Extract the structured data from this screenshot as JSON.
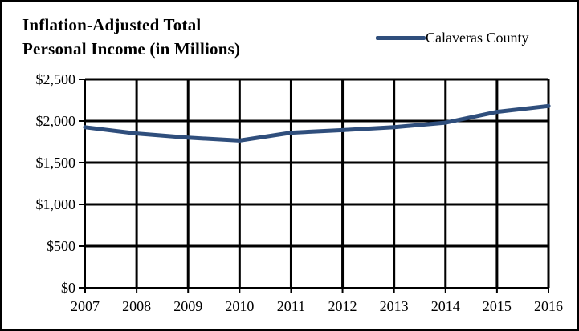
{
  "chart_data": {
    "type": "line",
    "title_lines": [
      "Inflation-Adjusted  Total",
      "Personal Income  (in Millions)"
    ],
    "xlabel": "",
    "ylabel": "",
    "x": [
      "2007",
      "2008",
      "2009",
      "2010",
      "2011",
      "2012",
      "2013",
      "2014",
      "2015",
      "2016"
    ],
    "series": [
      {
        "name": "Calaveras County",
        "color": "#2f4e7c",
        "values": [
          1925,
          1850,
          1800,
          1765,
          1860,
          1890,
          1925,
          1980,
          2110,
          2180
        ]
      }
    ],
    "ylim": [
      0,
      2500
    ],
    "yticks": [
      0,
      500,
      1000,
      1500,
      2000,
      2500
    ],
    "ytick_labels": [
      "$0",
      "$500",
      "$1,000",
      "$1,500",
      "$2,000",
      "$2,500"
    ],
    "grid": true,
    "legend_position": "top-right"
  }
}
